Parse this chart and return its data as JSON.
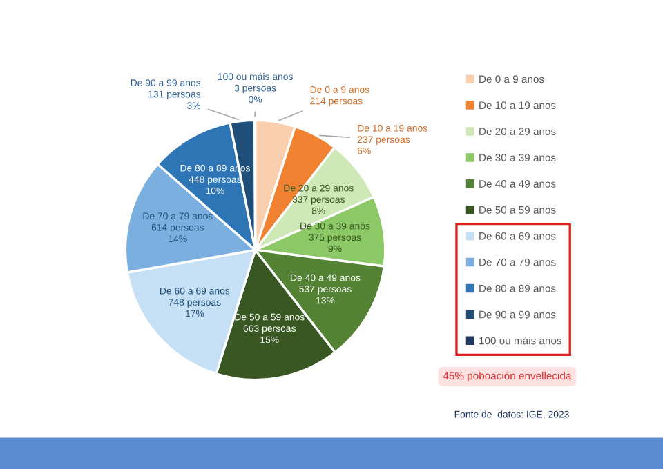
{
  "chart_data": {
    "type": "pie",
    "categories": [
      "De 0 a 9 anos",
      "De 10 a 19 anos",
      "De 20 a 29 anos",
      "De 30 a 39 anos",
      "De 40 a 49 anos",
      "De 50 a 59 anos",
      "De 60 a 69 anos",
      "De 70 a 79 anos",
      "De 80 a 89 anos",
      "De 90 a 99 anos",
      "100 ou máis anos"
    ],
    "values": [
      214,
      237,
      337,
      375,
      537,
      663,
      748,
      614,
      448,
      131,
      3
    ],
    "colors": [
      "#fbcfae",
      "#f08232",
      "#cfe8b8",
      "#8cc865",
      "#548235",
      "#385723",
      "#c5dff5",
      "#7aafe0",
      "#2e75b6",
      "#1f4e79",
      "#203864"
    ],
    "value_labels": [
      "214 persoas",
      "237 persoas\n6%",
      "337 persoas\n8%",
      "375 persoas\n9%",
      "537 persoas\n13%",
      "663 persoas\n15%",
      "748 persoas\n17%",
      "614 persoas\n14%",
      "448 persoas\n10%",
      "131 persoas\n3%",
      "3 persoas\n0%"
    ],
    "legend": "right",
    "annotations": [
      "45% poboación envellecida",
      "Fonte de  datos: IGE, 2023"
    ]
  }
}
